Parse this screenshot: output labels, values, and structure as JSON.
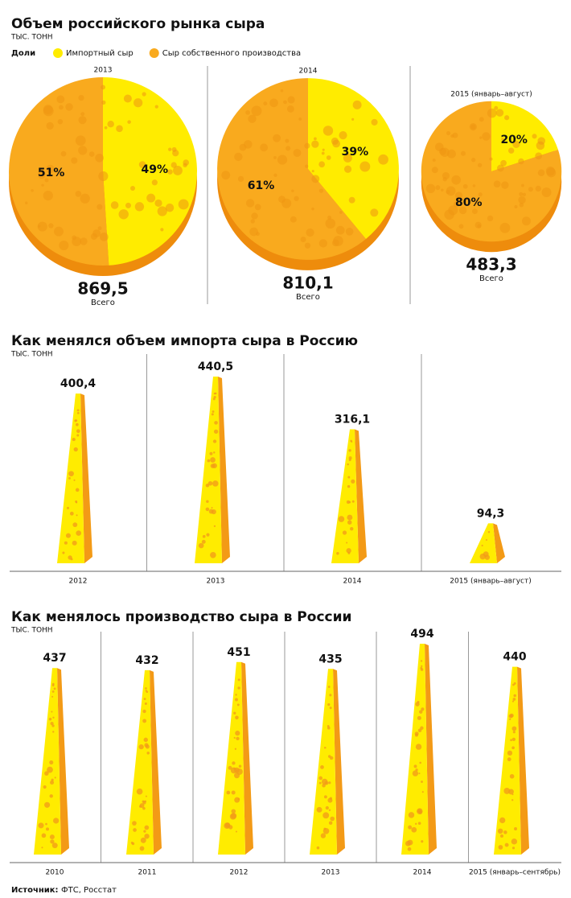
{
  "chart_data": [
    {
      "type": "pie",
      "title": "Объем российского рынка сыра",
      "subtitle": "ТЫС. ТОНН",
      "legend_title": "Доли",
      "categories": [
        "2013",
        "2014",
        "2015 (январь–август)"
      ],
      "series": [
        {
          "name": "Импортный сыр",
          "color": "#ffec00",
          "values": [
            49,
            39,
            20
          ],
          "value_labels": [
            "49%",
            "39%",
            "20%"
          ]
        },
        {
          "name": "Сыр собственного производства",
          "color": "#f9aa1e",
          "values": [
            51,
            61,
            80
          ],
          "value_labels": [
            "51%",
            "61%",
            "80%"
          ]
        }
      ],
      "totals": [
        869.5,
        810.1,
        483.3
      ],
      "total_labels": [
        "869,5",
        "810,1",
        "483,3"
      ],
      "total_caption": "Всего"
    },
    {
      "type": "bar",
      "title": "Как менялся объем импорта сыра в Россию",
      "subtitle": "ТЫС. ТОНН",
      "color": "#ffec00",
      "categories": [
        "2012",
        "2013",
        "2014",
        "2015 (январь–август)"
      ],
      "values": [
        400.4,
        440.5,
        316.1,
        94.3
      ],
      "value_labels": [
        "400,4",
        "440,5",
        "316,1",
        "94,3"
      ]
    },
    {
      "type": "bar",
      "title": "Как менялось производство сыра в России",
      "subtitle": "ТЫС. ТОНН",
      "color": "#ffec00",
      "categories": [
        "2010",
        "2011",
        "2012",
        "2013",
        "2014",
        "2015 (январь–сентябрь)"
      ],
      "values": [
        437,
        432,
        451,
        435,
        494,
        440
      ]
    }
  ],
  "source": {
    "label": "Источник:",
    "text": "ФТС, Росстат"
  }
}
